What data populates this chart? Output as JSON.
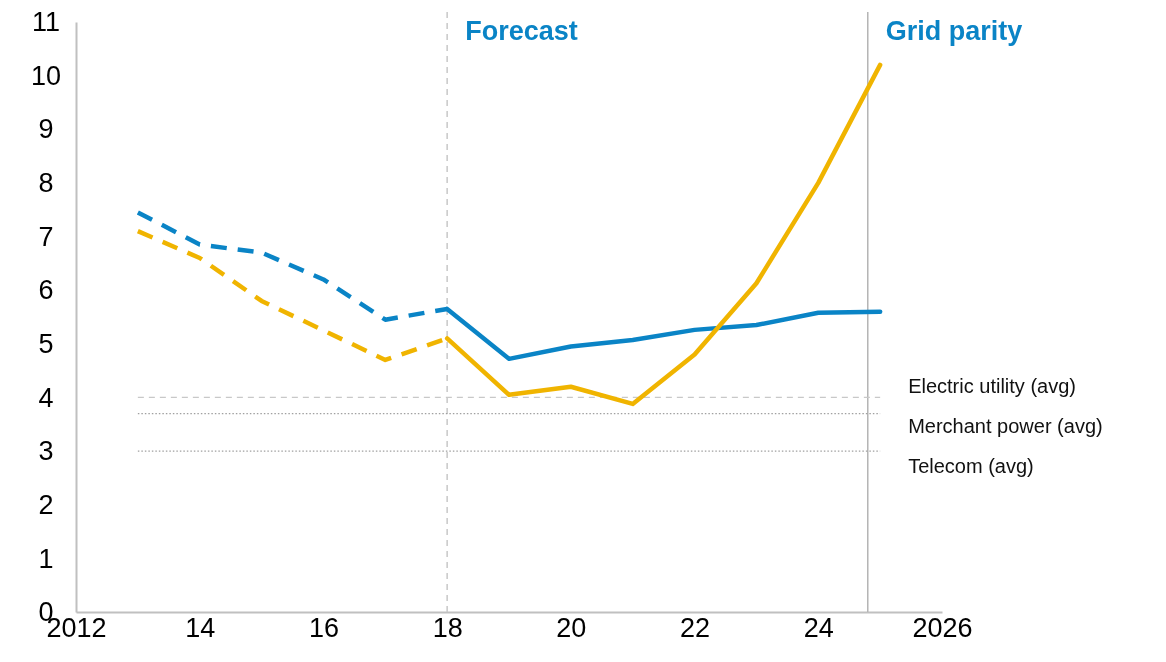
{
  "chart_data": {
    "type": "line",
    "xlim": [
      2012,
      2026
    ],
    "ylim": [
      0,
      11
    ],
    "xticks": [
      2012,
      {
        "value": 2014,
        "label": "14"
      },
      {
        "value": 2016,
        "label": "16"
      },
      {
        "value": 2018,
        "label": "18"
      },
      {
        "value": 2020,
        "label": "20"
      },
      {
        "value": 2022,
        "label": "22"
      },
      {
        "value": 2024,
        "label": "24"
      },
      2026
    ],
    "yticks": [
      0,
      1,
      2,
      3,
      4,
      5,
      6,
      7,
      8,
      9,
      10,
      11
    ],
    "grid": false,
    "marker": "none",
    "series": [
      {
        "color": "#0a84c6",
        "line_style": "dashed",
        "x": [
          2013,
          2014,
          2015,
          2016,
          2017,
          2018
        ],
        "values": [
          7.45,
          6.85,
          6.7,
          6.2,
          5.45,
          5.65
        ]
      },
      {
        "color": "#f0b400",
        "line_style": "dashed",
        "x": [
          2013,
          2014,
          2015,
          2016,
          2017,
          2018
        ],
        "values": [
          7.1,
          6.6,
          5.8,
          5.25,
          4.7,
          5.1
        ]
      },
      {
        "color": "#0a84c6",
        "line_style": "solid",
        "x": [
          2018,
          2019,
          2020,
          2021,
          2022,
          2023,
          2024,
          2025
        ],
        "values": [
          5.65,
          4.72,
          4.95,
          5.07,
          5.26,
          5.35,
          5.58,
          5.6
        ]
      },
      {
        "color": "#f0b400",
        "line_style": "solid",
        "x": [
          2018,
          2019,
          2020,
          2021,
          2022,
          2023,
          2024,
          2025
        ],
        "values": [
          5.1,
          4.05,
          4.2,
          3.88,
          4.8,
          6.13,
          8.0,
          10.2
        ]
      }
    ],
    "ref_lines": [
      {
        "axis": "x",
        "value": 2018,
        "label": "Forecast",
        "color": "#c8c8c8",
        "line_style": "dashed"
      },
      {
        "axis": "x",
        "value": 2024.8,
        "label": "Grid parity",
        "color": "#b4b4b4",
        "line_style": "solid"
      },
      {
        "axis": "y",
        "value": 4.0,
        "label": "Electric utility (avg)",
        "color": "#c8c8c8",
        "line_style": "dashed"
      },
      {
        "axis": "y",
        "value": 3.7,
        "label": "Merchant power (avg)",
        "color": "#a0a0a0",
        "line_style": "dotted"
      },
      {
        "axis": "y",
        "value": 3.0,
        "label": "Telecom (avg)",
        "color": "#a0a0a0",
        "line_style": "dotted"
      }
    ]
  }
}
